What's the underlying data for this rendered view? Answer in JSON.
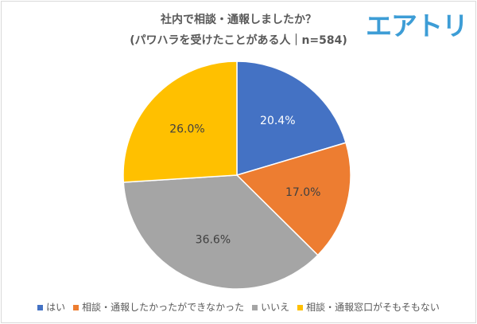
{
  "logo_text": "エアトリ",
  "chart_data": {
    "type": "pie",
    "title": "社内で相談・通報しましたか？",
    "subtitle": "(パワハラを受けたことがある人｜n=584)",
    "categories": [
      "はい",
      "相談・通報したかったができなかった",
      "いいえ",
      "相談・通報窓口がそもそもない"
    ],
    "values": [
      20.4,
      17.0,
      36.6,
      26.0
    ],
    "labels": [
      "20.4%",
      "17.0%",
      "36.6%",
      "26.0%"
    ],
    "colors": [
      "#4472c4",
      "#ed7d31",
      "#a5a5a5",
      "#ffc000"
    ],
    "start": "top",
    "direction": "clockwise",
    "legend_placement": "bottom"
  }
}
